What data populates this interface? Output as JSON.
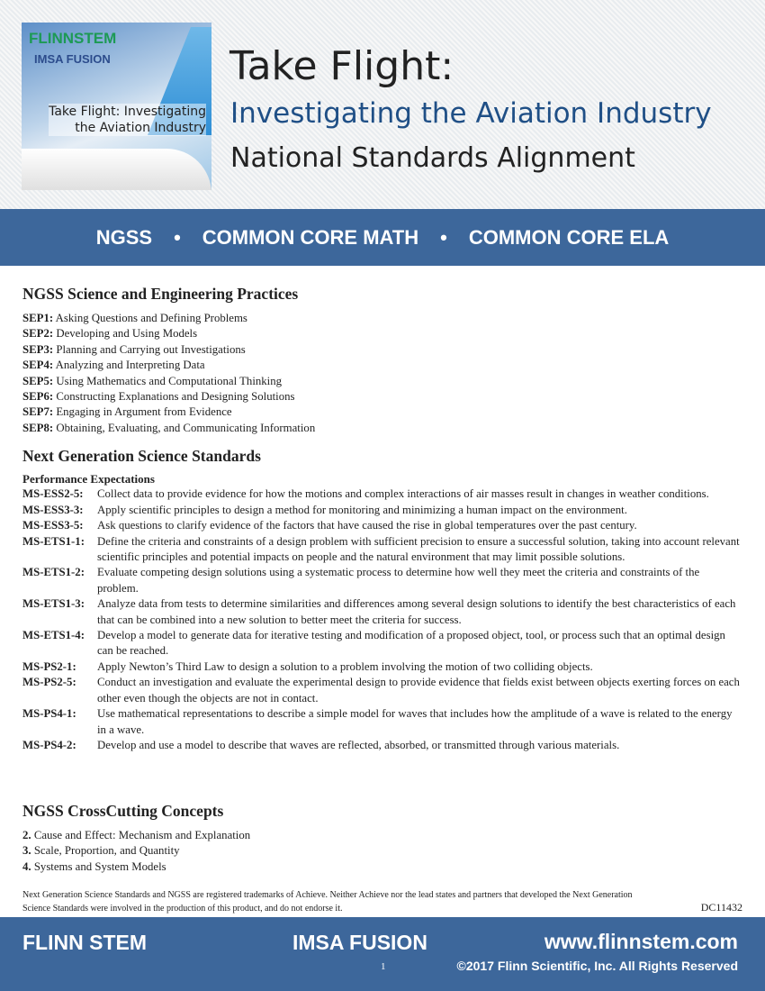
{
  "cover": {
    "brand": "FLINNSTEM",
    "partner": "IMSA FUSION",
    "title_line1": "Take Flight: Investigating",
    "title_line2": "the Aviation Industry"
  },
  "header": {
    "title": "Take Flight:",
    "subtitle": "Investigating the Aviation Industry",
    "subtitle2": "National Standards Alignment"
  },
  "band": {
    "items": [
      "NGSS",
      "COMMON CORE MATH",
      "COMMON CORE ELA"
    ],
    "separator": "•"
  },
  "sep": {
    "heading": "NGSS Science and Engineering Practices",
    "items": [
      {
        "code": "SEP1:",
        "text": "Asking Questions and Defining Problems"
      },
      {
        "code": "SEP2:",
        "text": "Developing and Using Models"
      },
      {
        "code": "SEP3:",
        "text": "Planning and Carrying out Investigations"
      },
      {
        "code": "SEP4:",
        "text": "Analyzing and Interpreting Data"
      },
      {
        "code": "SEP5:",
        "text": "Using Mathematics and Computational Thinking"
      },
      {
        "code": "SEP6:",
        "text": "Constructing Explanations and Designing Solutions"
      },
      {
        "code": "SEP7:",
        "text": "Engaging in Argument from Evidence"
      },
      {
        "code": "SEP8:",
        "text": "Obtaining, Evaluating, and Communicating Information"
      }
    ]
  },
  "ngss": {
    "heading": "Next Generation Science Standards",
    "subheading": "Performance Expectations",
    "items": [
      {
        "code": "MS-ESS2-5:",
        "text": "Collect data to provide evidence for how the motions and complex interactions of air masses result in changes in weather conditions."
      },
      {
        "code": "MS-ESS3-3:",
        "text": "Apply scientific principles to design a method for monitoring and minimizing a human impact on the environment."
      },
      {
        "code": "MS-ESS3-5:",
        "text": "Ask questions to clarify evidence of the factors that have caused the rise in global temperatures over the past century."
      },
      {
        "code": "MS-ETS1-1:",
        "text": "Define the criteria and constraints of a design problem with sufficient precision to ensure a successful solution, taking into account relevant scientific principles and potential impacts on people and the natural environment that may limit possible solutions."
      },
      {
        "code": "MS-ETS1-2:",
        "text": "Evaluate competing design solutions using a systematic process to determine how well they meet the criteria and constraints of the problem."
      },
      {
        "code": "MS-ETS1-3:",
        "text": "Analyze data from tests to determine similarities and differences among several design solutions to identify the best characteristics of each that can be combined into a new solution to better meet the criteria for success."
      },
      {
        "code": "MS-ETS1-4:",
        "text": "Develop a model to generate data for iterative testing and modification of a proposed object, tool, or process such that an optimal design can be reached."
      },
      {
        "code": "MS-PS2-1:",
        "text": "Apply Newton’s Third Law to design a solution to a problem involving the motion of two colliding objects."
      },
      {
        "code": "MS-PS2-5:",
        "text": "Conduct an investigation and evaluate the experimental design to provide evidence that fields exist between objects exerting forces on each other even though the objects are not in contact."
      },
      {
        "code": "MS-PS4-1:",
        "text": "Use mathematical representations to describe a simple model for waves that includes how the amplitude of a wave is related to the energy in a wave."
      },
      {
        "code": "MS-PS4-2:",
        "text": "Develop and use a model to describe that waves are reflected, absorbed, or transmitted through various materials."
      }
    ]
  },
  "ccc": {
    "heading": "NGSS CrossCutting Concepts",
    "items": [
      {
        "code": "2.",
        "text": "Cause and Effect: Mechanism and Explanation"
      },
      {
        "code": "3.",
        "text": "Scale, Proportion, and Quantity"
      },
      {
        "code": "4.",
        "text": "Systems and System Models"
      }
    ]
  },
  "note": "Next Generation Science Standards and NGSS are registered trademarks of Achieve. Neither Achieve nor the lead states and partners that developed the Next Generation Science Standards were involved in the production of this product, and do not endorse it.",
  "doc_code": "DC11432",
  "footer": {
    "left": "FLINN STEM",
    "center": "IMSA FUSION",
    "url": "www.flinnstem.com",
    "page": "1",
    "copyright": "©2017 Flinn Scientific, Inc. All Rights Reserved"
  }
}
